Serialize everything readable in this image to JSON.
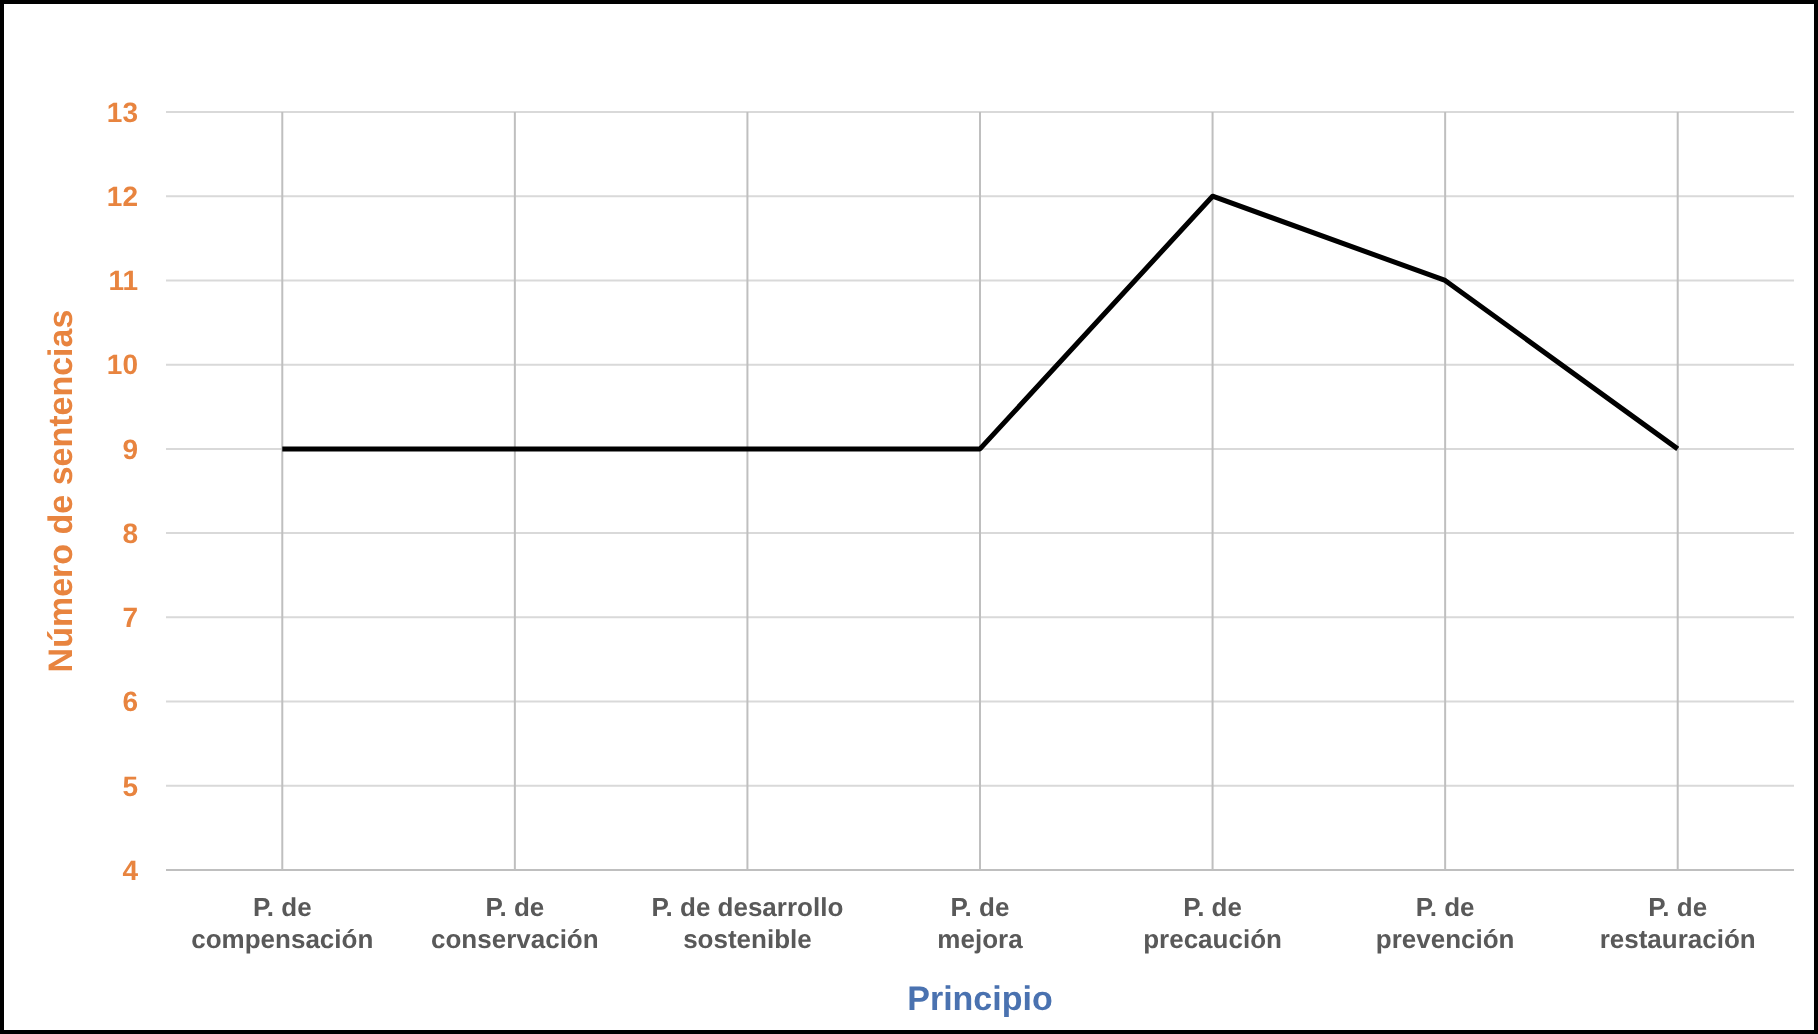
{
  "chart_data": {
    "type": "line",
    "xlabel": "Principio",
    "ylabel": "Número de sentencias",
    "categories": [
      "P. de compensación",
      "P. de conservación",
      "P. de desarrollo sostenible",
      "P. de mejora",
      "P. de precaución",
      "P. de prevención",
      "P. de restauración"
    ],
    "series": [
      {
        "color": "#000000",
        "values": [
          9,
          9,
          9,
          9,
          12,
          11,
          9
        ]
      }
    ],
    "ylim": [
      4,
      13
    ],
    "yticks": [
      4,
      5,
      6,
      7,
      8,
      9,
      10,
      11,
      12,
      13
    ],
    "grid": true,
    "marker": "none",
    "line_style": "solid"
  }
}
